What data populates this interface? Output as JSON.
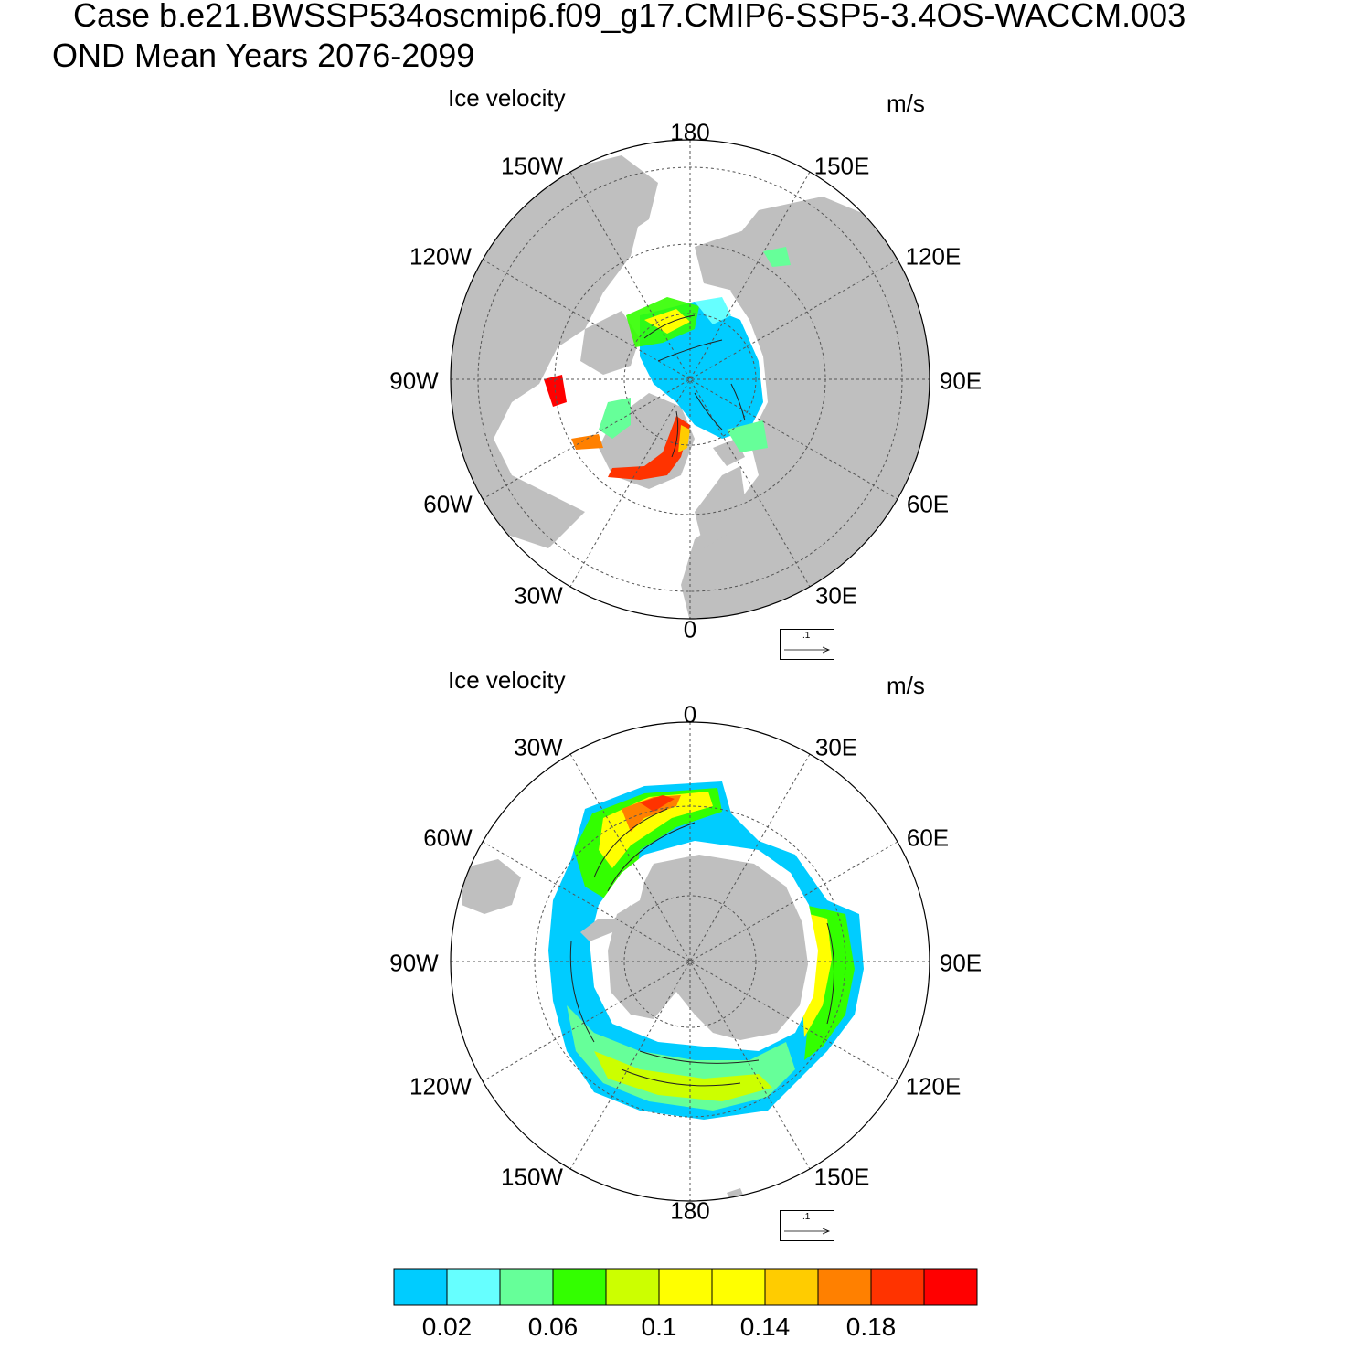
{
  "header": {
    "case_line": "Case b.e21.BWSSP534oscmip6.f09_g17.CMIP6-SSP5-3.4OS-WACCM.003",
    "period_line": "OND Mean   Years 2076-2099"
  },
  "panels": [
    {
      "hemisphere": "north",
      "left_title": "Ice velocity",
      "units": "m/s",
      "lon_labels": [
        "180",
        "150E",
        "120E",
        "90E",
        "60E",
        "30E",
        "0",
        "30W",
        "60W",
        "90W",
        "120W",
        "150W"
      ],
      "reference_vector": ".1"
    },
    {
      "hemisphere": "south",
      "left_title": "Ice velocity",
      "units": "m/s",
      "lon_labels": [
        "0",
        "30E",
        "60E",
        "90E",
        "120E",
        "150E",
        "180",
        "150W",
        "120W",
        "90W",
        "60W",
        "30W"
      ],
      "reference_vector": ".1"
    }
  ],
  "colorbar": {
    "colors": [
      "#00ccff",
      "#66ffff",
      "#66ff99",
      "#33ff00",
      "#ccff00",
      "#ffff00",
      "#ffff00",
      "#ffcc00",
      "#ff8000",
      "#ff3300",
      "#ff0000"
    ],
    "labels": [
      "0.02",
      "0.06",
      "0.1",
      "0.14",
      "0.18"
    ]
  },
  "colors": {
    "land": "#bfbfbf",
    "ocean": "#ffffff",
    "grid": "#555555"
  }
}
